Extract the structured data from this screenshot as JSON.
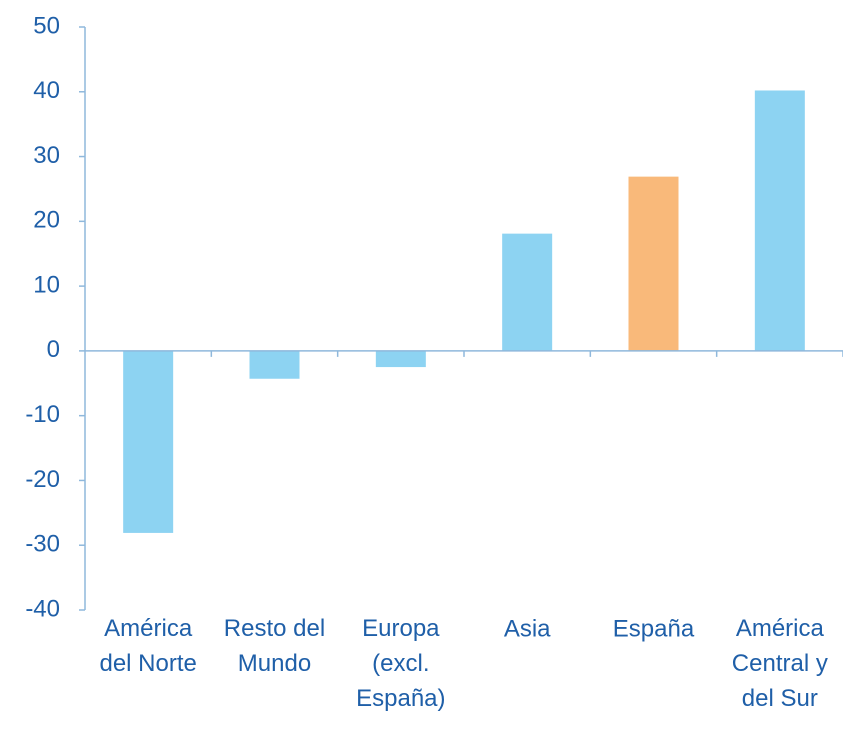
{
  "chart_data": {
    "type": "bar",
    "categories": [
      "América\ndel Norte",
      "Resto del\nMundo",
      "Europa\n(excl.\nEspaña)",
      "Asia",
      "España",
      "América\nCentral y\ndel Sur"
    ],
    "values": [
      -28.1,
      -4.3,
      -2.5,
      18.1,
      26.9,
      40.2
    ],
    "colors": [
      "#8dd3f2",
      "#8dd3f2",
      "#8dd3f2",
      "#8dd3f2",
      "#f9b97a",
      "#8dd3f2"
    ],
    "ylim": [
      -40,
      50
    ],
    "yticks": [
      -40,
      -30,
      -20,
      -10,
      0,
      10,
      20,
      30,
      40,
      50
    ],
    "grid": false
  }
}
